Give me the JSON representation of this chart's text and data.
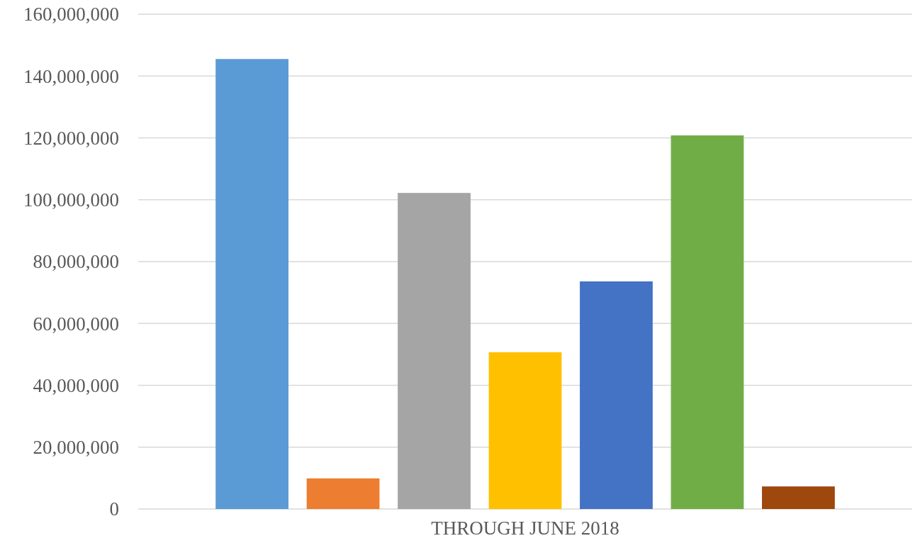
{
  "chart_data": {
    "type": "bar",
    "categories": [
      "THROUGH JUNE 2018"
    ],
    "series": [
      {
        "color": "#5b9bd5",
        "values": [
          145500000
        ]
      },
      {
        "color": "#ed7d31",
        "values": [
          9900000
        ]
      },
      {
        "color": "#a5a5a5",
        "values": [
          102200000
        ]
      },
      {
        "color": "#ffc000",
        "values": [
          50700000
        ]
      },
      {
        "color": "#4472c4",
        "values": [
          73600000
        ]
      },
      {
        "color": "#70ad47",
        "values": [
          120800000
        ]
      },
      {
        "color": "#9e480e",
        "values": [
          7300000
        ]
      }
    ],
    "ylim": [
      0,
      160000000
    ],
    "yticks": [
      {
        "value": 0,
        "label": "0"
      },
      {
        "value": 20000000,
        "label": "20,000,000"
      },
      {
        "value": 40000000,
        "label": "40,000,000"
      },
      {
        "value": 60000000,
        "label": "60,000,000"
      },
      {
        "value": 80000000,
        "label": "80,000,000"
      },
      {
        "value": 100000000,
        "label": "100,000,000"
      },
      {
        "value": 120000000,
        "label": "120,000,000"
      },
      {
        "value": 140000000,
        "label": "140,000,000"
      },
      {
        "value": 160000000,
        "label": "160,000,000"
      }
    ],
    "grid": "y"
  }
}
